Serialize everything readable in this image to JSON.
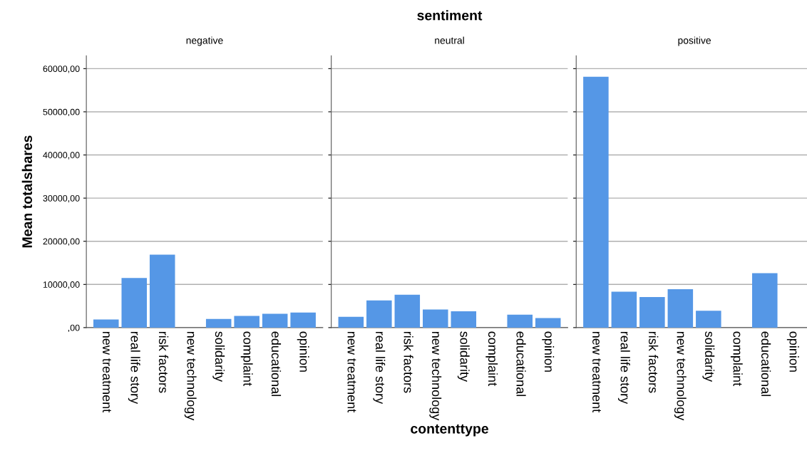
{
  "chart_data": [
    {
      "type": "bar",
      "title": "negative",
      "ylabel": "Mean totalshares",
      "categories": [
        "new treatment",
        "real life story",
        "risk factors",
        "new technology",
        "solidarity",
        "complaint",
        "educational",
        "opinion"
      ],
      "values": [
        1900,
        11500,
        16900,
        null,
        2000,
        2700,
        3200,
        3500
      ],
      "color": "#5597e6",
      "ylim": [
        0,
        63000
      ],
      "yticks": [
        {
          "value": 0,
          "label": ",00"
        },
        {
          "value": 10000,
          "label": "10000,00"
        },
        {
          "value": 20000,
          "label": "20000,00"
        },
        {
          "value": 30000,
          "label": "30000,00"
        },
        {
          "value": 40000,
          "label": "40000,00"
        },
        {
          "value": 50000,
          "label": "50000,00"
        },
        {
          "value": 60000,
          "label": "60000,00"
        }
      ],
      "grid": "y"
    },
    {
      "type": "bar",
      "title": "neutral",
      "xlabel": "contenttype",
      "annotations": [
        "sentiment"
      ],
      "categories": [
        "new treatment",
        "real life story",
        "risk factors",
        "new technology",
        "solidarity",
        "complaint",
        "educational",
        "opinion"
      ],
      "values": [
        2500,
        6300,
        7600,
        4200,
        3800,
        null,
        3000,
        2200
      ],
      "color": "#5597e6",
      "ylim": [
        0,
        63000
      ],
      "yticks": [
        {
          "value": 0,
          "label": null
        },
        {
          "value": 10000,
          "label": null
        },
        {
          "value": 20000,
          "label": null
        },
        {
          "value": 30000,
          "label": null
        },
        {
          "value": 40000,
          "label": null
        },
        {
          "value": 50000,
          "label": null
        },
        {
          "value": 60000,
          "label": null
        }
      ],
      "grid": "y",
      "tick_labels": "x"
    },
    {
      "type": "bar",
      "title": "positive",
      "categories": [
        "new treatment",
        "real life story",
        "risk factors",
        "new technology",
        "solidarity",
        "complaint",
        "educational",
        "opinion"
      ],
      "values": [
        58100,
        8300,
        7100,
        8900,
        3900,
        null,
        12600,
        null
      ],
      "color": "#5597e6",
      "ylim": [
        0,
        63000
      ],
      "yticks": [
        {
          "value": 0,
          "label": null
        },
        {
          "value": 10000,
          "label": null
        },
        {
          "value": 20000,
          "label": null
        },
        {
          "value": 30000,
          "label": null
        },
        {
          "value": 40000,
          "label": null
        },
        {
          "value": 50000,
          "label": null
        },
        {
          "value": 60000,
          "label": null
        }
      ],
      "grid": "y",
      "tick_labels": "x"
    }
  ]
}
